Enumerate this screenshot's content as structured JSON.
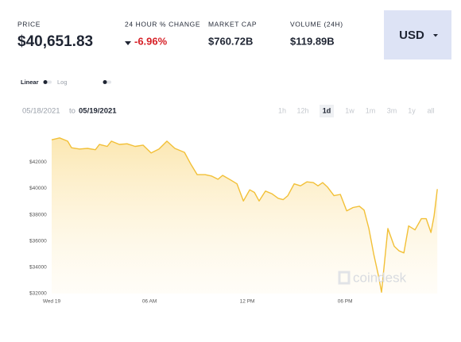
{
  "header": {
    "stats": [
      {
        "label": "PRICE",
        "value": "$40,651.83"
      },
      {
        "label": "24 HOUR % CHANGE",
        "value": "-6.96%"
      },
      {
        "label": "MARKET CAP",
        "value": "$760.72B"
      },
      {
        "label": "VOLUME (24H)",
        "value": "$119.89B"
      }
    ],
    "currency": "USD"
  },
  "controls": {
    "scales": [
      "Linear",
      "Log"
    ],
    "date_from": "05/18/2021",
    "to": "to",
    "date_to": "05/19/2021",
    "ranges": [
      "1h",
      "12h",
      "1d",
      "1w",
      "1m",
      "3m",
      "1y",
      "all"
    ],
    "active_range": "1d"
  },
  "watermark": "coindesk",
  "chart_data": {
    "type": "area",
    "color": "#f2c037",
    "x": [
      0,
      0.49,
      0.98,
      1.22,
      1.71,
      2.2,
      2.68,
      2.93,
      3.41,
      3.66,
      4.15,
      4.63,
      5.12,
      5.61,
      6.1,
      6.59,
      7.07,
      7.56,
      8.15,
      8.54,
      8.93,
      9.41,
      9.8,
      10.2,
      10.49,
      10.98,
      11.37,
      11.76,
      12.15,
      12.44,
      12.73,
      13.12,
      13.51,
      13.9,
      14.2,
      14.49,
      14.88,
      15.27,
      15.66,
      16.05,
      16.34,
      16.63,
      16.93,
      17.32,
      17.71,
      18.1,
      18.49,
      18.88,
      19.17,
      19.46,
      19.76,
      20.05,
      20.24,
      20.63,
      21.02,
      21.32,
      21.61,
      21.9,
      22.29,
      22.68,
      22.98,
      23.27,
      23.46,
      23.66
    ],
    "values": [
      43700,
      43850,
      43600,
      43100,
      43000,
      43050,
      42950,
      43350,
      43200,
      43600,
      43350,
      43400,
      43200,
      43300,
      42700,
      43000,
      43600,
      43050,
      42750,
      41850,
      41050,
      41050,
      40950,
      40700,
      41000,
      40650,
      40350,
      39050,
      39900,
      39700,
      39050,
      39800,
      39600,
      39250,
      39150,
      39450,
      40350,
      40200,
      40500,
      40450,
      40200,
      40450,
      40100,
      39450,
      39550,
      38300,
      38550,
      38650,
      38350,
      36950,
      35000,
      33350,
      32100,
      36950,
      35600,
      35250,
      35100,
      37150,
      36850,
      37700,
      37700,
      36650,
      37900,
      39950
    ],
    "xlim": [
      0,
      23.7
    ],
    "xticks": [
      {
        "value": 0,
        "label": "Wed 19"
      },
      {
        "value": 6,
        "label": "06 AM"
      },
      {
        "value": 12,
        "label": "12 PM"
      },
      {
        "value": 18,
        "label": "06 PM"
      }
    ],
    "ylim": [
      32000,
      44500
    ],
    "yticks": [
      {
        "value": 32000,
        "label": "$32000"
      },
      {
        "value": 34000,
        "label": "$34000"
      },
      {
        "value": 36000,
        "label": "$36000"
      },
      {
        "value": 38000,
        "label": "$38000"
      },
      {
        "value": 40000,
        "label": "$40000"
      },
      {
        "value": 42000,
        "label": "$42000"
      }
    ],
    "grid": false
  }
}
